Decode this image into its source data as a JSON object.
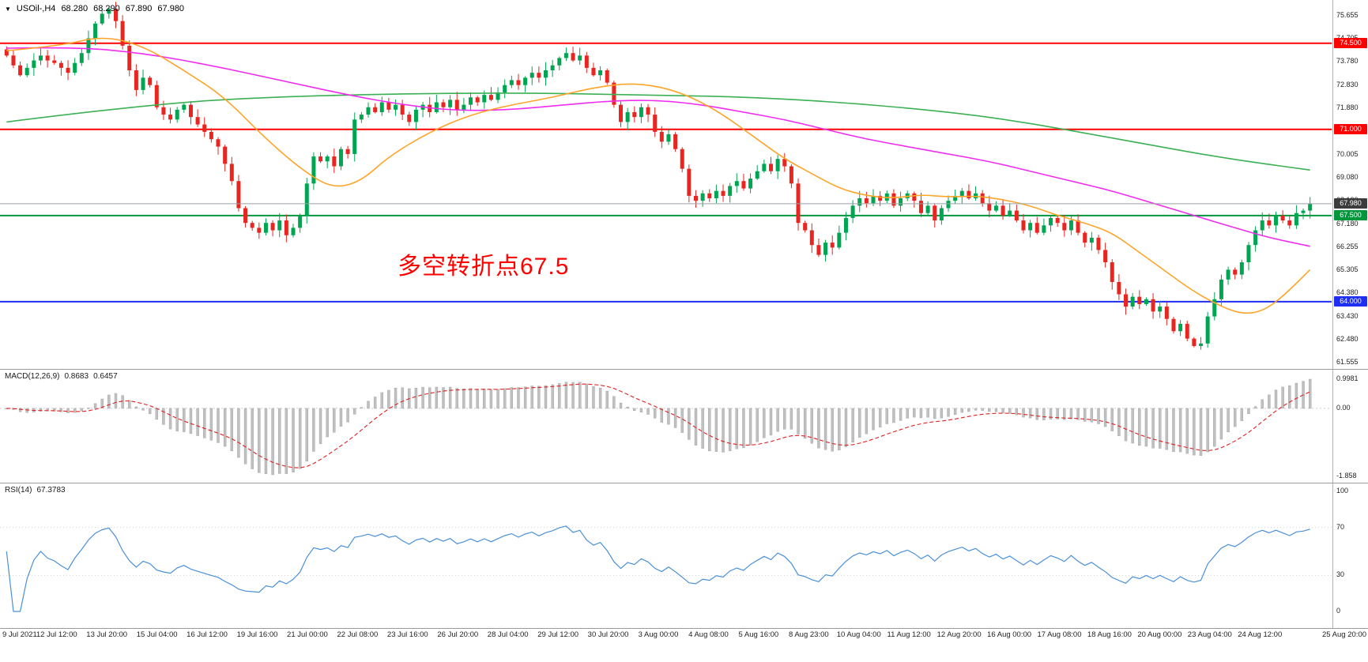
{
  "header": {
    "dropdown_icon": "▼",
    "symbol_period": "USOil-,H4",
    "open": "68.280",
    "high": "68.290",
    "low": "67.890",
    "close": "67.980"
  },
  "annotation": {
    "text": "多空转折点67.5",
    "color": "#ff0000"
  },
  "indicators": {
    "macd": {
      "label": "MACD(12,26,9)",
      "value_main": "0.8683",
      "value_signal": "0.6457",
      "axis": [
        "0.9981",
        "0.00",
        "-1.858"
      ]
    },
    "rsi": {
      "label": "RSI(14)",
      "value": "67.3783",
      "axis": [
        "100",
        "70",
        "30",
        "0"
      ],
      "axis_values": [
        100,
        70,
        30,
        0
      ],
      "levels": [
        70,
        30
      ]
    }
  },
  "price_axis": {
    "ticks": [
      "75.655",
      "74.705",
      "73.780",
      "72.830",
      "71.880",
      "70.930",
      "70.005",
      "69.080",
      "68.130",
      "67.180",
      "66.255",
      "65.305",
      "64.380",
      "63.430",
      "62.480",
      "61.555"
    ]
  },
  "time_axis": {
    "labels": [
      "9 Jul 2021",
      "12 Jul 12:00",
      "13 Jul 20:00",
      "15 Jul 04:00",
      "16 Jul 12:00",
      "19 Jul 16:00",
      "21 Jul 00:00",
      "22 Jul 08:00",
      "23 Jul 16:00",
      "26 Jul 20:00",
      "28 Jul 04:00",
      "29 Jul 12:00",
      "30 Jul 20:00",
      "3 Aug 00:00",
      "4 Aug 08:00",
      "5 Aug 16:00",
      "8 Aug 23:00",
      "10 Aug 04:00",
      "11 Aug 12:00",
      "12 Aug 20:00",
      "16 Aug 00:00",
      "17 Aug 08:00",
      "18 Aug 16:00",
      "20 Aug 00:00",
      "23 Aug 04:00",
      "24 Aug 12:00",
      "25 Aug 20:00"
    ]
  },
  "chart_data": {
    "type": "candlestick",
    "symbol": "USOil",
    "timeframe": "H4",
    "title": "USOil-,H4",
    "ohlc_current": {
      "open": 68.28,
      "high": 68.29,
      "low": 67.89,
      "close": 67.98
    },
    "price_range": {
      "min": 61.3,
      "max": 76.0
    },
    "closes": [
      74.0,
      73.6,
      73.2,
      73.5,
      73.8,
      74.0,
      73.8,
      73.7,
      73.5,
      73.3,
      73.7,
      74.1,
      74.7,
      75.3,
      75.7,
      75.9,
      75.4,
      74.4,
      73.4,
      72.6,
      73.1,
      72.8,
      71.9,
      71.6,
      71.4,
      71.8,
      72.0,
      71.5,
      71.2,
      70.9,
      70.6,
      70.3,
      69.6,
      68.9,
      67.8,
      67.2,
      67.0,
      66.8,
      67.2,
      66.9,
      67.3,
      66.7,
      67.0,
      67.5,
      68.8,
      69.9,
      69.7,
      69.9,
      69.5,
      70.2,
      70.0,
      71.4,
      71.6,
      71.9,
      71.7,
      72.1,
      71.8,
      72.0,
      71.6,
      71.3,
      71.8,
      72.0,
      71.7,
      72.1,
      71.9,
      72.2,
      71.8,
      72.0,
      72.3,
      72.1,
      72.4,
      72.2,
      72.5,
      72.8,
      73.0,
      72.8,
      73.1,
      73.3,
      73.1,
      73.4,
      73.6,
      73.9,
      74.1,
      73.8,
      74.0,
      73.5,
      73.2,
      73.4,
      72.9,
      72.0,
      71.3,
      71.7,
      71.5,
      71.9,
      71.6,
      70.9,
      70.5,
      70.8,
      70.2,
      69.4,
      68.3,
      68.1,
      68.4,
      68.2,
      68.5,
      68.3,
      68.7,
      68.9,
      68.6,
      69.0,
      69.3,
      69.6,
      69.3,
      69.8,
      69.5,
      68.8,
      67.2,
      66.9,
      66.3,
      65.9,
      66.4,
      66.2,
      66.8,
      67.4,
      67.9,
      68.2,
      68.0,
      68.3,
      68.1,
      68.4,
      67.9,
      68.2,
      68.4,
      68.1,
      67.6,
      67.9,
      67.3,
      67.8,
      68.1,
      68.3,
      68.5,
      68.2,
      68.4,
      68.0,
      67.7,
      67.9,
      67.5,
      67.7,
      67.3,
      66.9,
      67.2,
      66.8,
      67.1,
      67.4,
      67.2,
      66.9,
      67.3,
      66.8,
      66.4,
      66.6,
      66.1,
      65.6,
      64.8,
      64.3,
      63.8,
      64.2,
      63.9,
      64.1,
      63.6,
      63.8,
      63.3,
      62.8,
      63.1,
      62.5,
      62.2,
      62.3,
      63.4,
      64.1,
      64.9,
      65.3,
      65.1,
      65.6,
      66.3,
      66.9,
      67.3,
      67.1,
      67.5,
      67.3,
      67.1,
      67.6,
      67.7,
      67.98
    ],
    "candle_colors": {
      "up": "#00a551",
      "down": "#e8251f"
    },
    "moving_averages": [
      {
        "name": "ma-slow-green",
        "color": "#3cb054",
        "points": [
          [
            0,
            71.3
          ],
          [
            20,
            72.0
          ],
          [
            40,
            72.35
          ],
          [
            70,
            72.5
          ],
          [
            95,
            72.4
          ],
          [
            110,
            72.3
          ],
          [
            125,
            72.05
          ],
          [
            140,
            71.65
          ],
          [
            150,
            71.25
          ],
          [
            160,
            70.75
          ],
          [
            168,
            70.35
          ],
          [
            176,
            69.95
          ],
          [
            183,
            69.65
          ],
          [
            191,
            69.35
          ]
        ]
      },
      {
        "name": "ma-mid-magenta",
        "color": "#f02cf0",
        "points": [
          [
            0,
            74.3
          ],
          [
            10,
            74.35
          ],
          [
            20,
            74.1
          ],
          [
            30,
            73.6
          ],
          [
            40,
            73.0
          ],
          [
            50,
            72.4
          ],
          [
            58,
            72.0
          ],
          [
            66,
            71.75
          ],
          [
            74,
            71.8
          ],
          [
            82,
            72.0
          ],
          [
            88,
            72.15
          ],
          [
            95,
            72.2
          ],
          [
            102,
            72.0
          ],
          [
            108,
            71.7
          ],
          [
            114,
            71.4
          ],
          [
            120,
            71.0
          ],
          [
            126,
            70.6
          ],
          [
            132,
            70.3
          ],
          [
            138,
            70.0
          ],
          [
            144,
            69.7
          ],
          [
            150,
            69.3
          ],
          [
            156,
            68.9
          ],
          [
            162,
            68.5
          ],
          [
            168,
            68.0
          ],
          [
            174,
            67.5
          ],
          [
            180,
            67.0
          ],
          [
            185,
            66.6
          ],
          [
            191,
            66.25
          ]
        ]
      },
      {
        "name": "ma-fast-orange",
        "color": "#ffa428",
        "points": [
          [
            0,
            74.2
          ],
          [
            8,
            74.4
          ],
          [
            14,
            74.8
          ],
          [
            20,
            74.4
          ],
          [
            26,
            73.4
          ],
          [
            32,
            72.3
          ],
          [
            38,
            70.6
          ],
          [
            44,
            69.2
          ],
          [
            48,
            68.6
          ],
          [
            52,
            68.9
          ],
          [
            56,
            69.9
          ],
          [
            62,
            70.9
          ],
          [
            68,
            71.6
          ],
          [
            74,
            72.0
          ],
          [
            80,
            72.3
          ],
          [
            86,
            72.7
          ],
          [
            92,
            72.9
          ],
          [
            98,
            72.6
          ],
          [
            104,
            71.8
          ],
          [
            110,
            70.6
          ],
          [
            114,
            69.8
          ],
          [
            118,
            69.2
          ],
          [
            122,
            68.6
          ],
          [
            126,
            68.3
          ],
          [
            130,
            68.2
          ],
          [
            134,
            68.35
          ],
          [
            138,
            68.25
          ],
          [
            142,
            68.3
          ],
          [
            146,
            68.15
          ],
          [
            150,
            67.9
          ],
          [
            154,
            67.5
          ],
          [
            158,
            67.2
          ],
          [
            162,
            66.8
          ],
          [
            166,
            66.0
          ],
          [
            170,
            65.2
          ],
          [
            174,
            64.4
          ],
          [
            178,
            63.8
          ],
          [
            181,
            63.5
          ],
          [
            184,
            63.6
          ],
          [
            187,
            64.2
          ],
          [
            191,
            65.3
          ]
        ]
      }
    ],
    "hlines": [
      {
        "price": 74.5,
        "label": "74.500",
        "color": "#ff0000",
        "width": 2,
        "tag_bg": "#ff0000"
      },
      {
        "price": 71.0,
        "label": "71.000",
        "color": "#ff0000",
        "width": 2,
        "tag_bg": "#ff0000"
      },
      {
        "price": 67.5,
        "label": "67.500",
        "color": "#00963c",
        "width": 2,
        "tag_bg": "#00963c"
      },
      {
        "price": 64.0,
        "label": "64.000",
        "color": "#1f2ff2",
        "width": 2,
        "tag_bg": "#1f2ff2"
      },
      {
        "price": 67.98,
        "label": "67.980",
        "color": "#9aa0a6",
        "width": 1,
        "tag_bg": "#3c3c3c",
        "current": true
      }
    ],
    "macd": {
      "fast": 12,
      "slow": 26,
      "signal": 9,
      "current_main": 0.8683,
      "current_signal": 0.6457,
      "histogram_color": "#c0c0c0",
      "signal_color": "#e02020"
    },
    "rsi": {
      "period": 14,
      "current": 67.3783,
      "color": "#4a90d8"
    }
  }
}
